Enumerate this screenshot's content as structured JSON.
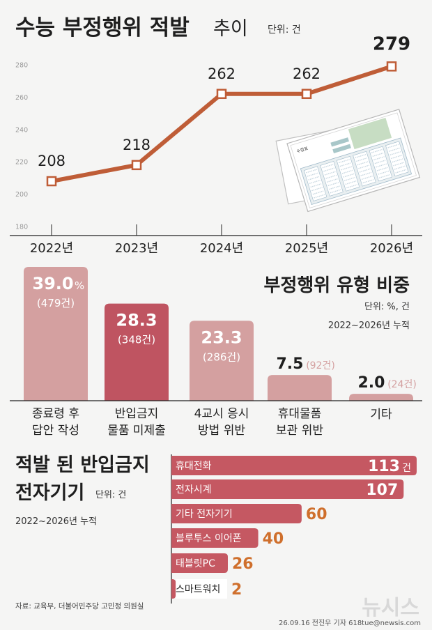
{
  "header": {
    "title": "수능 부정행위 적발",
    "title_suffix": "추이",
    "unit": "단위: 건"
  },
  "colors": {
    "line": "#bf5d37",
    "bar_light": "#d4a0a0",
    "bar_dark": "#bf5461",
    "bar_mid": "#c55862",
    "dev_text_orange": "#cf6f2c",
    "grid_text": "#9a9a9a"
  },
  "chart_data": [
    {
      "type": "line",
      "x": [
        "2022년",
        "2023년",
        "2024년",
        "2025년",
        "2026년"
      ],
      "values": [
        208,
        218,
        262,
        262,
        279
      ],
      "value_labels": [
        "208",
        "218",
        "262",
        "262",
        "279"
      ],
      "ylim": [
        180,
        280
      ],
      "yticks": [
        "180",
        "200",
        "220",
        "240",
        "260",
        "280"
      ],
      "grid": false
    },
    {
      "type": "bar",
      "title": "부정행위 유형 비중",
      "unit": "단위: %, 건",
      "period": "2022~2026년 누적",
      "categories": [
        "종료령 후\n답안 작성",
        "반입금지\n물품 미제출",
        "4교시 응시\n방법 위반",
        "휴대물품\n보관 위반",
        "기타"
      ],
      "values": [
        39.0,
        28.3,
        23.3,
        7.5,
        2.0
      ],
      "value_labels": [
        "39.0",
        "28.3",
        "23.3",
        "7.5",
        "2.0"
      ],
      "percent_suffix": "%",
      "counts": [
        "(479건)",
        "(348건)",
        "(286건)",
        "(92건)",
        "(24건)"
      ],
      "highlight_index": 1
    },
    {
      "type": "bar",
      "orientation": "horizontal",
      "title": "적발 된 반입금지\n전자기기",
      "unit": "단위: 건",
      "period": "2022~2026년 누적",
      "categories": [
        "휴대전화",
        "전자시계",
        "기타 전자기기",
        "블루투스 이어폰",
        "태블릿PC",
        "스마트워치"
      ],
      "values": [
        113,
        107,
        60,
        40,
        26,
        2
      ],
      "value_labels": [
        "113",
        "107",
        "60",
        "40",
        "26",
        "2"
      ],
      "first_suffix": "건"
    }
  ],
  "footer": {
    "source": "자료: 교육부, 더불어민주당 고민정 의원실",
    "credit": "26.09.16 전진우 기자 618tue@newsis.com",
    "logo": "뉴시스"
  },
  "illustration": {
    "name": "answer-sheet",
    "label": "수험표"
  }
}
